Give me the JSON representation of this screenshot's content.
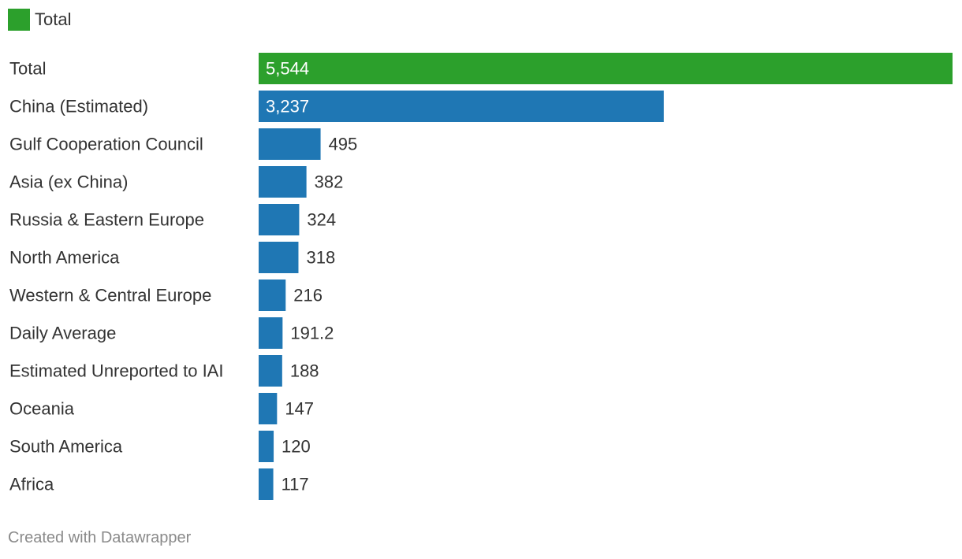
{
  "legend": {
    "items": [
      {
        "label": "Total",
        "color": "#2ca02c"
      }
    ]
  },
  "chart_data": {
    "type": "bar",
    "orientation": "horizontal",
    "title": "",
    "xlabel": "",
    "ylabel": "",
    "xlim": [
      0,
      5544
    ],
    "grid": false,
    "legend_position": "top-left",
    "colors": {
      "total": "#2ca02c",
      "default": "#1f77b4"
    },
    "categories": [
      "Total",
      "China (Estimated)",
      "Gulf Cooperation Council",
      "Asia (ex China)",
      "Russia & Eastern Europe",
      "North America",
      "Western & Central Europe",
      "Daily Average",
      "Estimated Unreported to IAI",
      "Oceania",
      "South America",
      "Africa"
    ],
    "values": [
      5544,
      3237,
      495,
      382,
      324,
      318,
      216,
      191.2,
      188,
      147,
      120,
      117
    ],
    "value_labels": [
      "5,544",
      "3,237",
      "495",
      "382",
      "324",
      "318",
      "216",
      "191.2",
      "188",
      "147",
      "120",
      "117"
    ],
    "bar_colors": [
      "#2ca02c",
      "#1f77b4",
      "#1f77b4",
      "#1f77b4",
      "#1f77b4",
      "#1f77b4",
      "#1f77b4",
      "#1f77b4",
      "#1f77b4",
      "#1f77b4",
      "#1f77b4",
      "#1f77b4"
    ]
  },
  "footer": {
    "credit": "Created with Datawrapper"
  }
}
